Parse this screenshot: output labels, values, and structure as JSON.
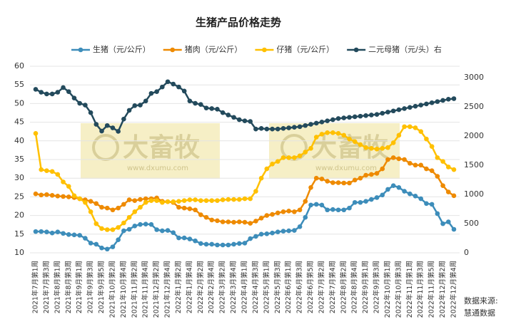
{
  "chart_data": {
    "type": "line",
    "title": "生猪产品价格走势",
    "categories": [
      "2021年7月第1周",
      null,
      "2021年7月第3周",
      null,
      "2021年8月第1周",
      null,
      "2021年8月第3周",
      null,
      "2021年9月第1周",
      null,
      "2021年9月第3周",
      null,
      "2021年9月第5周",
      null,
      "2021年10月第2周",
      null,
      "2021年10月第4周",
      null,
      "2021年11月第2周",
      null,
      "2021年11月第4周",
      null,
      "2021年12月第2周",
      null,
      "2021年12月第4周",
      null,
      "2022年1月第2周",
      null,
      "2022年1月第4周",
      null,
      "2022年2月第2周",
      null,
      "2022年2月第4周",
      null,
      "2022年3月第2周",
      null,
      "2022年3月第4周",
      null,
      "2022年4月第1周",
      null,
      "2022年4月第3周",
      null,
      "2022年5月第1周",
      null,
      "2022年5月第3周",
      null,
      "2022年6月第1周",
      null,
      "2022年6月第3周",
      null,
      "2022年6月第5周",
      null,
      "2022年7月第2周",
      null,
      "2022年7月第4周",
      null,
      "2022年8月第2周",
      null,
      "2022年8月第4周",
      null,
      "2022年9月第1周",
      null,
      "2022年9月第3周",
      null,
      "2022年10月第1周",
      null,
      "2022年10月第3周",
      null,
      "2022年11月第1周",
      null,
      "2022年11月第3周",
      null,
      "2022年11月第5周",
      null,
      "2022年12月第2周",
      null,
      "2022年12月第4周"
    ],
    "series": [
      {
        "name": "生猪（元/公斤）",
        "color": "#3d8dba",
        "values": [
          15.7,
          15.7,
          15.6,
          15.3,
          15.6,
          15.2,
          14.9,
          14.8,
          14.7,
          13.9,
          12.6,
          12.3,
          11.3,
          11,
          11.6,
          13.5,
          15.9,
          16.3,
          17.2,
          17.6,
          17.7,
          17.6,
          16.2,
          15.9,
          16,
          15.4,
          14,
          14,
          13.7,
          13.2,
          12.5,
          12.3,
          12.3,
          12.1,
          12.1,
          12.1,
          12.3,
          12.5,
          12.6,
          13.8,
          14.4,
          15,
          15.1,
          15.3,
          15.6,
          15.8,
          15.9,
          16,
          17,
          19.5,
          22.8,
          23,
          22.8,
          21.5,
          21.6,
          21.5,
          21.5,
          22,
          23.5,
          23.5,
          23.8,
          24.3,
          24.8,
          25.5,
          27,
          28,
          27.5,
          26.5,
          25.8,
          25.2,
          24.5,
          23.2,
          23,
          20.5,
          17.8,
          18.3,
          16.3
        ]
      },
      {
        "name": "猪肉（元/公斤）",
        "color": "#ee8a00",
        "values": [
          25.8,
          25.5,
          25.6,
          25.4,
          25.2,
          25.1,
          25,
          24.8,
          24.5,
          24.2,
          23.8,
          23.2,
          22.2,
          22,
          21.5,
          22,
          23,
          24.2,
          24,
          24.3,
          24.5,
          24.5,
          24.7,
          23.8,
          23.7,
          23.5,
          22.2,
          22,
          21.8,
          21.5,
          20.2,
          19.5,
          18.8,
          18.6,
          18.3,
          18.3,
          18.2,
          18.3,
          18.2,
          17.9,
          18.5,
          19.3,
          20,
          20.3,
          20.7,
          21,
          21.2,
          21,
          21.5,
          23.8,
          27.5,
          30,
          29.8,
          29.2,
          28.8,
          28.8,
          28.7,
          28.7,
          29.5,
          30,
          30.8,
          31,
          31.3,
          32.5,
          35,
          35.5,
          35.2,
          35,
          34,
          33.5,
          33.5,
          32.5,
          32,
          30.5,
          28,
          26.3,
          25.3
        ]
      },
      {
        "name": "仔猪（元/公斤）",
        "color": "#ffc000",
        "values": [
          42,
          32.3,
          32,
          31.8,
          31,
          29,
          27.8,
          25.3,
          24.5,
          23.5,
          21,
          17.8,
          16.5,
          16.2,
          16.2,
          16.8,
          18,
          19.5,
          21,
          22.2,
          23.5,
          24,
          24,
          23.5,
          23.7,
          23.7,
          23.8,
          24,
          24.2,
          24.2,
          24,
          24,
          24,
          24,
          24.2,
          24.3,
          24.3,
          24.3,
          24.5,
          24.5,
          26.5,
          30,
          32.5,
          33.8,
          34.5,
          35.5,
          35.5,
          35.5,
          36,
          37,
          38,
          41,
          41.8,
          42.2,
          42.2,
          42,
          41.5,
          40.5,
          39.8,
          39,
          38.2,
          38,
          37.8,
          38,
          38.2,
          39.5,
          41.5,
          43.8,
          43.8,
          43.5,
          42.5,
          40.5,
          38.5,
          35.5,
          34.5,
          33,
          32.3
        ]
      },
      {
        "name": "二元母猪（元/头）右",
        "color": "#234a5c",
        "axis": "y2",
        "values": [
          2800,
          2750,
          2720,
          2720,
          2750,
          2830,
          2760,
          2650,
          2560,
          2530,
          2400,
          2200,
          2085,
          2180,
          2140,
          2080,
          2290,
          2440,
          2520,
          2530,
          2600,
          2730,
          2760,
          2840,
          2930,
          2890,
          2840,
          2770,
          2600,
          2560,
          2540,
          2480,
          2470,
          2460,
          2400,
          2360,
          2320,
          2280,
          2260,
          2250,
          2120,
          2130,
          2120,
          2120,
          2120,
          2130,
          2140,
          2150,
          2160,
          2180,
          2200,
          2220,
          2240,
          2260,
          2280,
          2300,
          2310,
          2320,
          2330,
          2340,
          2350,
          2360,
          2370,
          2390,
          2410,
          2430,
          2450,
          2470,
          2490,
          2510,
          2530,
          2550,
          2570,
          2590,
          2610,
          2630,
          2640
        ]
      }
    ],
    "ylim": [
      10,
      60
    ],
    "yticks": [
      10,
      15,
      20,
      25,
      30,
      35,
      40,
      45,
      50,
      55,
      60
    ],
    "y2lim": [
      0,
      3000
    ],
    "y2ticks": [
      0,
      500,
      1000,
      1500,
      2000,
      2500,
      3000
    ],
    "grid": true,
    "legend": "top",
    "watermark": [
      "大畜牧",
      "www.dxumu.com"
    ],
    "source": [
      "数据来源:",
      "慧通数据"
    ]
  }
}
